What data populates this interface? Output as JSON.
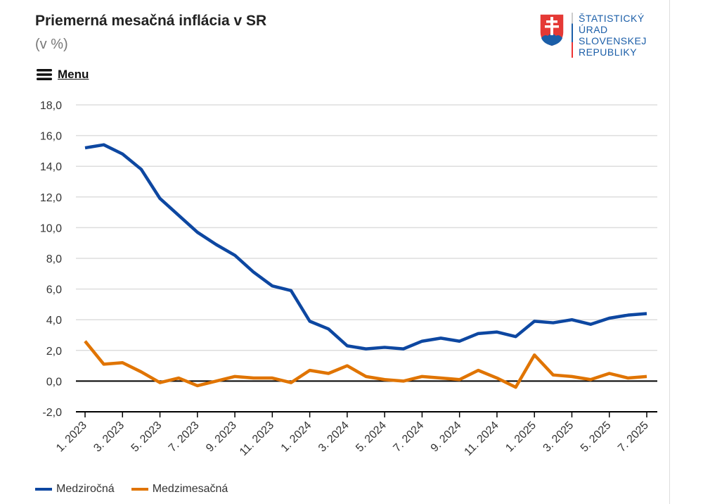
{
  "header": {
    "title": "Priemerná mesačná inflácia v SR",
    "subtitle": "(v %)",
    "menu_label": "Menu"
  },
  "logo": {
    "lines": [
      "ŠTATISTICKÝ",
      "ÚRAD",
      "SLOVENSKEJ",
      "REPUBLIKY"
    ]
  },
  "chart_data": {
    "type": "line",
    "title": "Priemerná mesačná inflácia v SR",
    "subtitle": "(v %)",
    "ylim": [
      -2,
      18
    ],
    "yticks": [
      "-2,0",
      "0,0",
      "2,0",
      "4,0",
      "6,0",
      "8,0",
      "10,0",
      "12,0",
      "14,0",
      "16,0",
      "18,0"
    ],
    "grid": true,
    "legend": "bottom-left",
    "x": [
      "1. 2023",
      "2. 2023",
      "3. 2023",
      "4. 2023",
      "5. 2023",
      "6. 2023",
      "7. 2023",
      "8. 2023",
      "9. 2023",
      "10. 2023",
      "11. 2023",
      "12. 2023",
      "1. 2024",
      "2. 2024",
      "3. 2024",
      "4. 2024",
      "5. 2024",
      "6. 2024",
      "7. 2024",
      "8. 2024",
      "9. 2024",
      "10. 2024",
      "11. 2024",
      "12. 2024",
      "1. 2025",
      "2. 2025",
      "3. 2025",
      "4. 2025",
      "5. 2025",
      "6. 2025",
      "7. 2025"
    ],
    "xtick_labels": [
      "1. 2023",
      "3. 2023",
      "5. 2023",
      "7. 2023",
      "9. 2023",
      "11. 2023",
      "1. 2024",
      "3. 2024",
      "5. 2024",
      "7. 2024",
      "9. 2024",
      "11. 2024",
      "1. 2025",
      "3. 2025",
      "5. 2025",
      "7. 2025"
    ],
    "series": [
      {
        "name": "Medziročná",
        "color": "#0d47a1",
        "values": [
          15.2,
          15.4,
          14.8,
          13.8,
          11.9,
          10.8,
          9.7,
          8.9,
          8.2,
          7.1,
          6.2,
          5.9,
          3.9,
          3.4,
          2.3,
          2.1,
          2.2,
          2.1,
          2.6,
          2.8,
          2.6,
          3.1,
          3.2,
          2.9,
          3.9,
          3.8,
          4.0,
          3.7,
          4.1,
          4.3,
          4.4
        ]
      },
      {
        "name": "Medzimesačná",
        "color": "#e07400",
        "values": [
          2.6,
          1.1,
          1.2,
          0.6,
          -0.1,
          0.2,
          -0.3,
          0.0,
          0.3,
          0.2,
          0.2,
          -0.1,
          0.7,
          0.5,
          1.0,
          0.3,
          0.1,
          0.0,
          0.3,
          0.2,
          0.1,
          0.7,
          0.2,
          -0.4,
          1.7,
          0.4,
          0.3,
          0.1,
          0.5,
          0.2,
          0.3
        ]
      }
    ]
  }
}
